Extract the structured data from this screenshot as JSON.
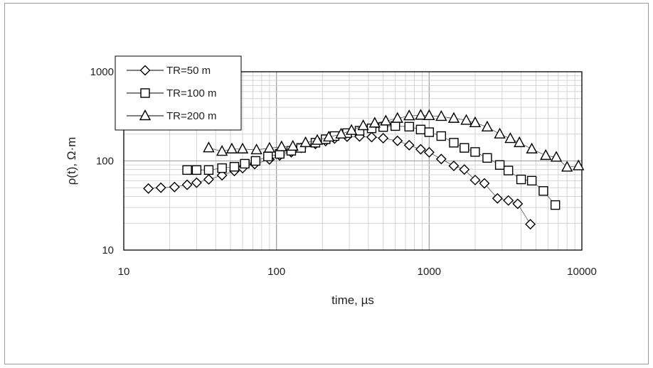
{
  "chart_data": {
    "type": "scatter",
    "xlabel": "time, µs",
    "ylabel": "ρ(t), Ω·m",
    "xscale": "log",
    "yscale": "log",
    "xlim": [
      10,
      10000
    ],
    "ylim": [
      10,
      1000
    ],
    "xticks": [
      "10",
      "100",
      "1000",
      "10000"
    ],
    "yticks": [
      "10",
      "100",
      "1000"
    ],
    "grid": true,
    "legend_position": "top-left",
    "series": [
      {
        "name": "TR=50 m",
        "marker": "diamond",
        "points": [
          [
            14.5,
            49
          ],
          [
            17.5,
            50
          ],
          [
            21.5,
            51
          ],
          [
            26,
            54
          ],
          [
            30,
            57
          ],
          [
            36,
            62
          ],
          [
            44,
            69
          ],
          [
            53,
            77
          ],
          [
            60,
            83
          ],
          [
            72,
            92
          ],
          [
            90,
            104
          ],
          [
            105,
            115
          ],
          [
            125,
            125
          ],
          [
            145,
            140
          ],
          [
            180,
            155
          ],
          [
            210,
            167
          ],
          [
            240,
            178
          ],
          [
            290,
            187
          ],
          [
            350,
            188
          ],
          [
            420,
            185
          ],
          [
            500,
            180
          ],
          [
            620,
            168
          ],
          [
            740,
            150
          ],
          [
            880,
            135
          ],
          [
            1000,
            125
          ],
          [
            1200,
            105
          ],
          [
            1450,
            88
          ],
          [
            1700,
            80
          ],
          [
            2000,
            61
          ],
          [
            2300,
            56
          ],
          [
            2800,
            38
          ],
          [
            3300,
            36
          ],
          [
            3800,
            33
          ],
          [
            4600,
            19.5
          ]
        ]
      },
      {
        "name": "TR=100 m",
        "marker": "square",
        "points": [
          [
            26,
            79
          ],
          [
            30,
            79
          ],
          [
            36,
            79
          ],
          [
            44,
            83
          ],
          [
            53,
            86
          ],
          [
            62,
            93
          ],
          [
            73,
            100
          ],
          [
            88,
            112
          ],
          [
            105,
            120
          ],
          [
            125,
            130
          ],
          [
            145,
            140
          ],
          [
            180,
            160
          ],
          [
            210,
            175
          ],
          [
            240,
            190
          ],
          [
            290,
            205
          ],
          [
            350,
            218
          ],
          [
            420,
            232
          ],
          [
            500,
            240
          ],
          [
            600,
            246
          ],
          [
            740,
            242
          ],
          [
            880,
            225
          ],
          [
            1000,
            210
          ],
          [
            1200,
            190
          ],
          [
            1450,
            160
          ],
          [
            1700,
            140
          ],
          [
            2000,
            126
          ],
          [
            2400,
            108
          ],
          [
            2900,
            90
          ],
          [
            3300,
            78
          ],
          [
            4000,
            62
          ],
          [
            4700,
            60
          ],
          [
            5600,
            46
          ],
          [
            6700,
            32
          ]
        ]
      },
      {
        "name": "TR=200 m",
        "marker": "triangle",
        "points": [
          [
            36,
            140
          ],
          [
            44,
            128
          ],
          [
            51,
            136
          ],
          [
            60,
            136
          ],
          [
            74,
            133
          ],
          [
            90,
            139
          ],
          [
            108,
            144
          ],
          [
            128,
            146
          ],
          [
            155,
            160
          ],
          [
            185,
            170
          ],
          [
            220,
            185
          ],
          [
            265,
            200
          ],
          [
            310,
            220
          ],
          [
            370,
            248
          ],
          [
            440,
            265
          ],
          [
            520,
            280
          ],
          [
            620,
            300
          ],
          [
            740,
            320
          ],
          [
            880,
            325
          ],
          [
            1000,
            322
          ],
          [
            1200,
            315
          ],
          [
            1450,
            300
          ],
          [
            1750,
            285
          ],
          [
            2000,
            268
          ],
          [
            2400,
            240
          ],
          [
            2900,
            200
          ],
          [
            3400,
            178
          ],
          [
            3900,
            160
          ],
          [
            4700,
            136
          ],
          [
            5800,
            115
          ],
          [
            6800,
            110
          ],
          [
            8000,
            85
          ],
          [
            9500,
            88
          ]
        ]
      }
    ]
  }
}
